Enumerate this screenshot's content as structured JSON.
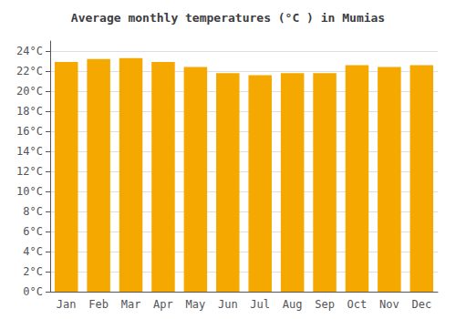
{
  "chart_data": {
    "type": "bar",
    "title": "Average monthly temperatures (°C ) in Mumias",
    "categories": [
      "Jan",
      "Feb",
      "Mar",
      "Apr",
      "May",
      "Jun",
      "Jul",
      "Aug",
      "Sep",
      "Oct",
      "Nov",
      "Dec"
    ],
    "values": [
      22.9,
      23.2,
      23.3,
      22.9,
      22.4,
      21.8,
      21.6,
      21.8,
      21.8,
      22.6,
      22.4,
      22.6
    ],
    "color": "#F5A800",
    "ylim": [
      0,
      25
    ],
    "yticks": [
      {
        "value": 0,
        "label": "0°C"
      },
      {
        "value": 2,
        "label": "2°C"
      },
      {
        "value": 4,
        "label": "4°C"
      },
      {
        "value": 6,
        "label": "6°C"
      },
      {
        "value": 8,
        "label": "8°C"
      },
      {
        "value": 10,
        "label": "10°C"
      },
      {
        "value": 12,
        "label": "12°C"
      },
      {
        "value": 14,
        "label": "14°C"
      },
      {
        "value": 16,
        "label": "16°C"
      },
      {
        "value": 18,
        "label": "18°C"
      },
      {
        "value": 20,
        "label": "20°C"
      },
      {
        "value": 22,
        "label": "22°C"
      },
      {
        "value": 24,
        "label": "24°C"
      }
    ],
    "grid": true
  }
}
